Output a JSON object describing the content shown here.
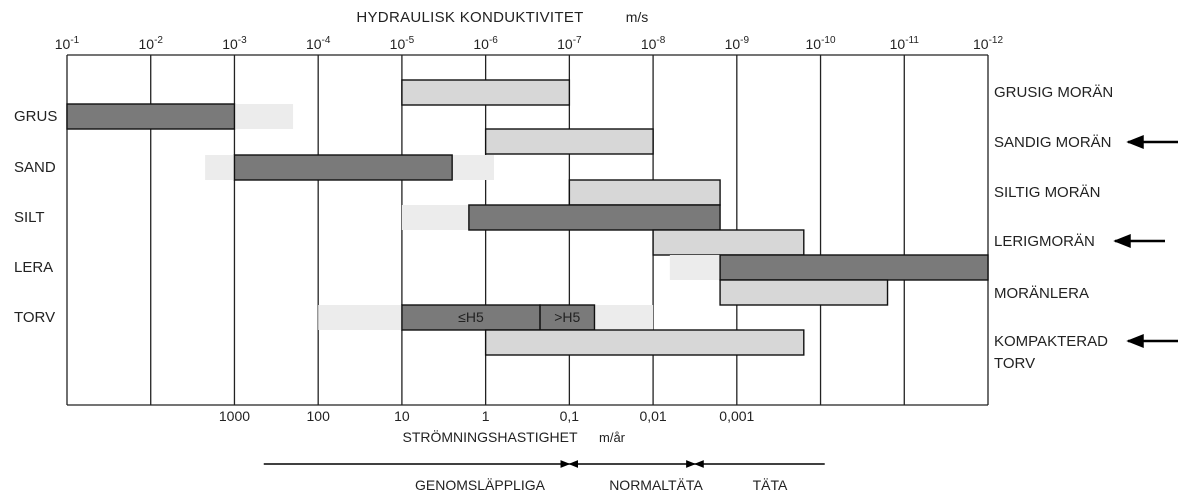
{
  "chart_data": {
    "type": "bar",
    "title": "HYDRAULISK  KONDUKTIVITET",
    "title_unit": "m/s",
    "top_axis": {
      "ticks": [
        {
          "base": "10",
          "exp": "-1"
        },
        {
          "base": "10",
          "exp": "-2"
        },
        {
          "base": "10",
          "exp": "-3"
        },
        {
          "base": "10",
          "exp": "-4"
        },
        {
          "base": "10",
          "exp": "-5"
        },
        {
          "base": "10",
          "exp": "-6"
        },
        {
          "base": "10",
          "exp": "-7"
        },
        {
          "base": "10",
          "exp": "-8"
        },
        {
          "base": "10",
          "exp": "-9"
        },
        {
          "base": "10",
          "exp": "-10"
        },
        {
          "base": "10",
          "exp": "-11"
        },
        {
          "base": "10",
          "exp": "-12"
        }
      ]
    },
    "xlim_exponent": [
      -1,
      -12
    ],
    "bottom_axis": {
      "label": "STRÖMNINGSHASTIGHET",
      "unit": "m/år",
      "ticks": [
        {
          "label": "1000",
          "exp": -3
        },
        {
          "label": "100",
          "exp": -4
        },
        {
          "label": "10",
          "exp": -5
        },
        {
          "label": "1",
          "exp": -6
        },
        {
          "label": "0,1",
          "exp": -7
        },
        {
          "label": "0,01",
          "exp": -8
        },
        {
          "label": "0,001",
          "exp": -9
        }
      ]
    },
    "left_categories": [
      "GRUS",
      "SAND",
      "SILT",
      "LERA",
      "TORV"
    ],
    "right_categories": [
      {
        "label": "GRUSIG MORÄN",
        "arrow": false
      },
      {
        "label": "SANDIG MORÄN",
        "arrow": true
      },
      {
        "label": "SILTIG MORÄN",
        "arrow": false
      },
      {
        "label": "LERIGMORÄN",
        "arrow": true
      },
      {
        "label": "MORÄNLERA",
        "arrow": false
      },
      {
        "label": "KOMPAKTERAD\nTORV",
        "arrow": true
      }
    ],
    "bars": [
      {
        "category": "GRUSIG MORÄN",
        "from_exp": -5,
        "to_exp": -7,
        "style": "moran"
      },
      {
        "category": "GRUS",
        "from_exp": -3,
        "to_exp": -3.7,
        "style": "faint"
      },
      {
        "category": "GRUS",
        "from_exp": -1,
        "to_exp": -3,
        "style": "main"
      },
      {
        "category": "SANDIG MORÄN",
        "from_exp": -6,
        "to_exp": -8,
        "style": "moran"
      },
      {
        "category": "SAND",
        "from_exp": -2.65,
        "to_exp": -3,
        "style": "faint"
      },
      {
        "category": "SAND",
        "from_exp": -5.6,
        "to_exp": -6.1,
        "style": "faint"
      },
      {
        "category": "SAND",
        "from_exp": -3,
        "to_exp": -5.6,
        "style": "main"
      },
      {
        "category": "SILTIG MORÄN",
        "from_exp": -7,
        "to_exp": -8.8,
        "style": "moran"
      },
      {
        "category": "SILT",
        "from_exp": -5,
        "to_exp": -5.8,
        "style": "faint"
      },
      {
        "category": "SILT",
        "from_exp": -5.8,
        "to_exp": -8.8,
        "style": "main"
      },
      {
        "category": "LERIGMORÄN",
        "from_exp": -8,
        "to_exp": -9.8,
        "style": "moran"
      },
      {
        "category": "LERA",
        "from_exp": -8.2,
        "to_exp": -8.8,
        "style": "faint"
      },
      {
        "category": "LERA",
        "from_exp": -8.8,
        "to_exp": -12,
        "style": "main"
      },
      {
        "category": "MORÄNLERA",
        "from_exp": -8.8,
        "to_exp": -10.8,
        "style": "moran"
      },
      {
        "category": "TORV",
        "from_exp": -4,
        "to_exp": -5,
        "style": "faint"
      },
      {
        "category": "TORV",
        "from_exp": -7.3,
        "to_exp": -8,
        "style": "faint"
      },
      {
        "category": "TORV",
        "from_exp": -5,
        "to_exp": -6.65,
        "style": "main",
        "label": "≤H5"
      },
      {
        "category": "TORV",
        "from_exp": -6.65,
        "to_exp": -7.3,
        "style": "main",
        "label": ">H5"
      },
      {
        "category": "KOMPAKTERAD TORV",
        "from_exp": -6,
        "to_exp": -9.8,
        "style": "moran"
      }
    ],
    "bottom_arrows": [
      {
        "label": "GENOMSLÄPPLIGA",
        "from_exp": -3.35,
        "to_exp": -7,
        "direction": "right"
      },
      {
        "label": "NORMALTÄTA",
        "from_exp": -7,
        "to_exp": -8.5,
        "direction": "both"
      },
      {
        "label": "TÄTA",
        "from_exp": -8.5,
        "to_exp": -10.05,
        "direction": "left"
      }
    ],
    "grid": true,
    "colors": {
      "main": "#7a7a7a",
      "faint": "#ececec",
      "moran": "#d7d7d7",
      "axis": "#222222"
    }
  }
}
